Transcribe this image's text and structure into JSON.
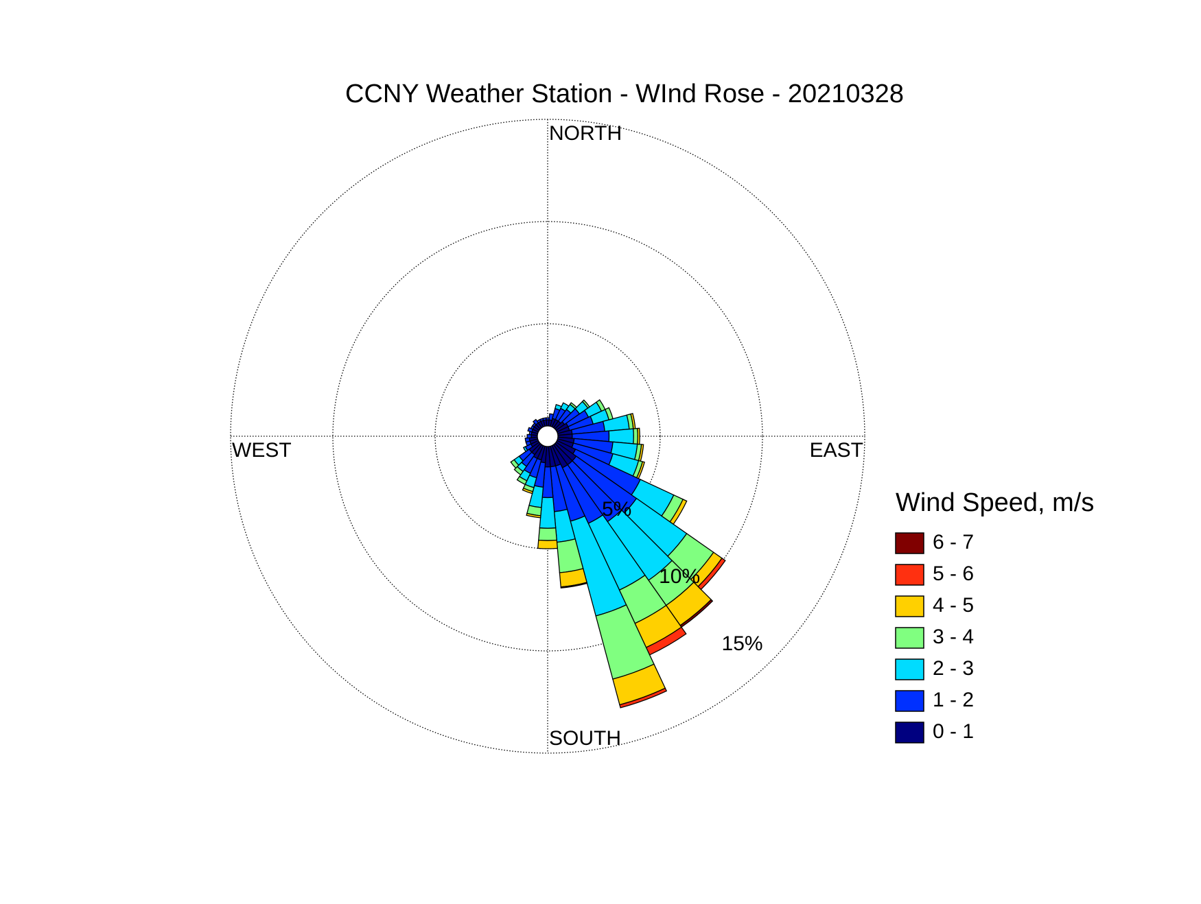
{
  "chart_data": {
    "type": "windrose",
    "title": "CCNY Weather Station - WInd Rose - 20210328",
    "direction_labels": [
      "NORTH",
      "EAST",
      "SOUTH",
      "WEST"
    ],
    "legend_title": "Wind Speed, m/s",
    "legend": "right",
    "x": [
      0,
      10,
      20,
      30,
      40,
      50,
      60,
      70,
      80,
      90,
      100,
      110,
      120,
      130,
      140,
      150,
      160,
      170,
      180,
      190,
      200,
      210,
      220,
      230,
      240,
      250,
      260,
      270,
      280,
      290,
      300,
      310,
      320,
      330,
      340,
      350
    ],
    "rlim": [
      0,
      15
    ],
    "rticks": [
      {
        "value": 5,
        "label": "5%"
      },
      {
        "value": 10,
        "label": "10%"
      },
      {
        "value": 15,
        "label": "15%"
      }
    ],
    "grid": true,
    "series": [
      {
        "name": "0 - 1",
        "color": "#000080",
        "values": [
          0.3,
          0.3,
          0.4,
          0.4,
          0.4,
          0.5,
          0.6,
          0.6,
          0.7,
          0.7,
          0.8,
          0.8,
          1.0,
          1.2,
          1.2,
          1.2,
          1.0,
          1.0,
          1.0,
          0.8,
          0.7,
          0.7,
          0.6,
          0.6,
          0.4,
          0.4,
          0.4,
          0.3,
          0.3,
          0.3,
          0.3,
          0.3,
          0.3,
          0.3,
          0.3,
          0.3
        ]
      },
      {
        "name": "1 - 2",
        "color": "#0030ff",
        "values": [
          0.1,
          0.3,
          0.5,
          0.6,
          0.7,
          0.9,
          1.1,
          1.2,
          1.6,
          1.8,
          1.9,
          2.0,
          3.5,
          3.6,
          3.4,
          3.0,
          2.8,
          2.2,
          1.5,
          1.2,
          0.9,
          0.8,
          0.7,
          0.6,
          0.3,
          0.2,
          0.2,
          0.2,
          0.1,
          0.2,
          0.1,
          0.1,
          0.2,
          0.1,
          0.1,
          0.1
        ]
      },
      {
        "name": "2 - 3",
        "color": "#00dcff",
        "values": [
          0,
          0,
          0.2,
          0.3,
          0.3,
          0.5,
          0.7,
          0.8,
          1.2,
          1.2,
          1.2,
          1.3,
          1.8,
          3.0,
          3.5,
          3.6,
          4.8,
          1.5,
          1.5,
          1.0,
          0.5,
          0.4,
          0.3,
          0.3,
          0.1,
          0,
          0,
          0,
          0,
          0,
          0,
          0,
          0,
          0,
          0,
          0
        ]
      },
      {
        "name": "3 - 4",
        "color": "#80ff80",
        "values": [
          0,
          0,
          0,
          0,
          0.1,
          0.1,
          0.2,
          0.2,
          0.2,
          0.2,
          0.2,
          0.2,
          0.5,
          1.6,
          1.5,
          1.8,
          3.2,
          1.5,
          0.6,
          0.4,
          0.2,
          0.2,
          0.2,
          0.2,
          0,
          0,
          0,
          0,
          0,
          0,
          0,
          0,
          0,
          0,
          0,
          0
        ]
      },
      {
        "name": "4 - 5",
        "color": "#ffd000",
        "values": [
          0,
          0,
          0,
          0,
          0,
          0,
          0,
          0,
          0.1,
          0.1,
          0.1,
          0.1,
          0.2,
          0.5,
          1.2,
          1.3,
          1.3,
          0.7,
          0.4,
          0.1,
          0.1,
          0,
          0,
          0,
          0,
          0,
          0,
          0,
          0,
          0,
          0,
          0,
          0,
          0,
          0,
          0
        ]
      },
      {
        "name": "5 - 6",
        "color": "#ff3010",
        "values": [
          0,
          0,
          0,
          0,
          0,
          0,
          0,
          0,
          0,
          0,
          0,
          0,
          0,
          0.2,
          0,
          0.4,
          0.15,
          0,
          0,
          0,
          0,
          0,
          0,
          0,
          0,
          0,
          0,
          0,
          0,
          0,
          0,
          0,
          0,
          0,
          0,
          0
        ]
      },
      {
        "name": "6 - 7",
        "color": "#800000",
        "values": [
          0,
          0,
          0,
          0,
          0,
          0,
          0,
          0,
          0,
          0,
          0,
          0,
          0,
          0,
          0.1,
          0,
          0,
          0.05,
          0,
          0,
          0,
          0,
          0,
          0,
          0,
          0,
          0,
          0,
          0,
          0,
          0,
          0,
          0,
          0,
          0,
          0
        ]
      }
    ]
  }
}
